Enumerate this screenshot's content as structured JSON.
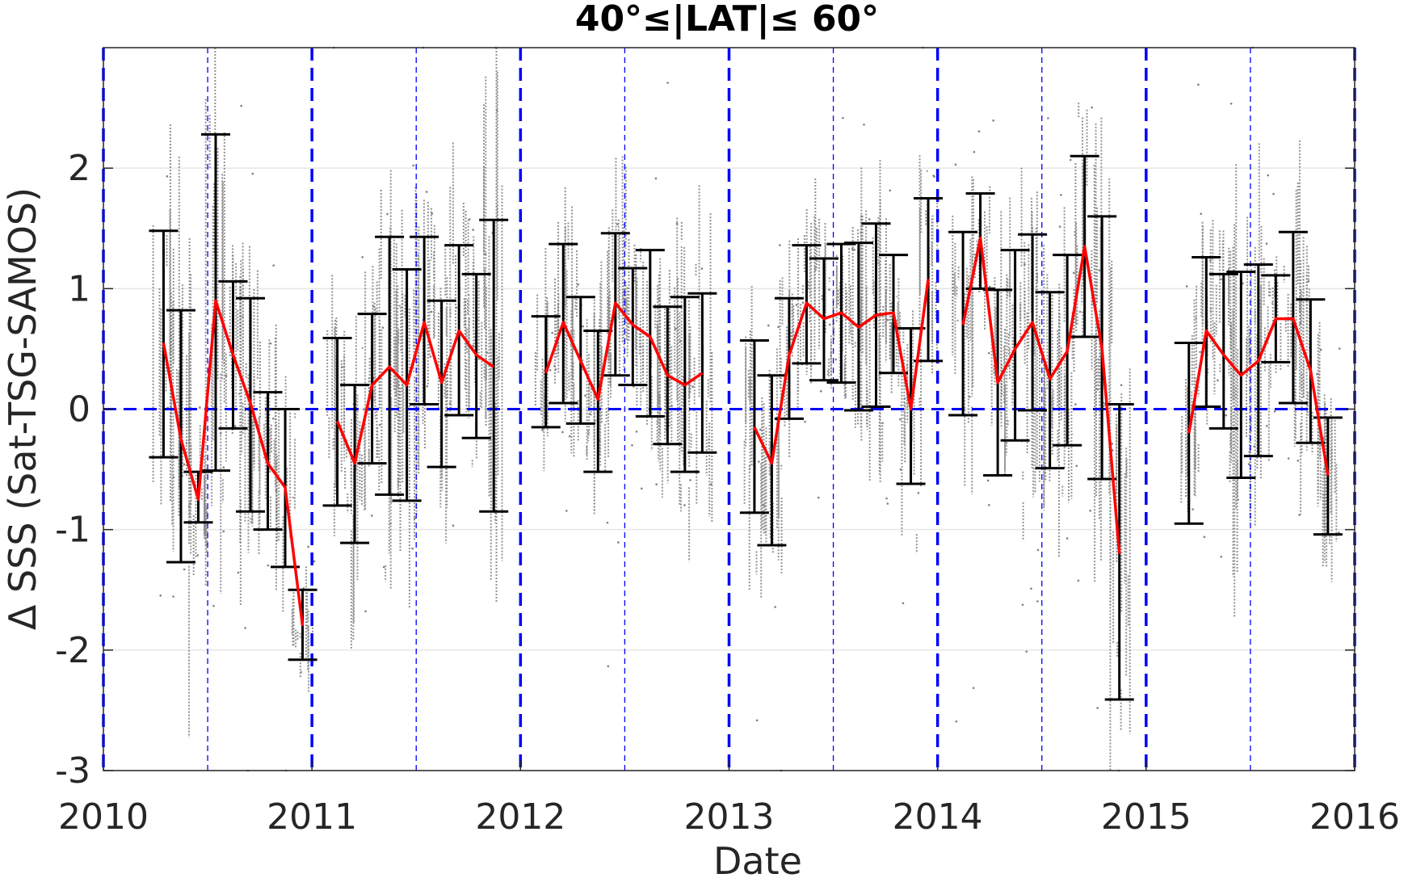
{
  "chart_data": {
    "type": "scatter",
    "title": "40°≤|LAT|≤ 60°",
    "xlabel": "Date",
    "ylabel": "Δ SSS (Sat-TSG-SAMOS)",
    "xlim": [
      "2010",
      "2016"
    ],
    "ylim": [
      -3,
      3
    ],
    "xticks": [
      "2010",
      "2011",
      "2012",
      "2013",
      "2014",
      "2015",
      "2016"
    ],
    "yticks": [
      "-3",
      "-2",
      "-1",
      "0",
      "1",
      "2"
    ],
    "grid": true,
    "colors": {
      "points": "#808080",
      "mean_line": "#ff0000",
      "error_bars": "#000000",
      "reference_lines": "#0000ff"
    },
    "series": [
      {
        "style": "red-line",
        "x": [
          "2010-04-15",
          "2010-05-15",
          "2010-06-15",
          "2010-07-15",
          "2010-08-15",
          "2010-09-15",
          "2010-10-15",
          "2010-11-15",
          "2010-12-15",
          "2011-02-15",
          "2011-03-15",
          "2011-04-15",
          "2011-05-15",
          "2011-06-15",
          "2011-07-15",
          "2011-08-15",
          "2011-09-15",
          "2011-10-15",
          "2011-11-15",
          "2012-02-15",
          "2012-03-15",
          "2012-04-15",
          "2012-05-15",
          "2012-06-15",
          "2012-07-15",
          "2012-08-15",
          "2012-09-15",
          "2012-10-15",
          "2012-11-15",
          "2013-02-15",
          "2013-03-15",
          "2013-04-15",
          "2013-05-15",
          "2013-06-15",
          "2013-07-15",
          "2013-08-15",
          "2013-09-15",
          "2013-10-15",
          "2013-11-15",
          "2013-12-15",
          "2014-02-15",
          "2014-03-15",
          "2014-04-15",
          "2014-05-15",
          "2014-06-15",
          "2014-07-15",
          "2014-08-15",
          "2014-09-15",
          "2014-10-15",
          "2014-11-15",
          "2015-03-15",
          "2015-04-15",
          "2015-05-15",
          "2015-06-15",
          "2015-07-15",
          "2015-08-15",
          "2015-09-15",
          "2015-10-15",
          "2015-11-15"
        ],
        "values": [
          0.55,
          -0.25,
          -0.75,
          0.9,
          0.45,
          0.05,
          -0.45,
          -0.65,
          -1.8,
          -0.1,
          -0.45,
          0.2,
          0.35,
          0.2,
          0.72,
          0.22,
          0.65,
          0.45,
          0.35,
          0.3,
          0.72,
          0.4,
          0.08,
          0.88,
          0.7,
          0.6,
          0.28,
          0.2,
          0.3,
          -0.15,
          -0.45,
          0.45,
          0.88,
          0.75,
          0.8,
          0.68,
          0.78,
          0.8,
          0.0,
          1.08,
          0.7,
          1.42,
          0.22,
          0.5,
          0.72,
          0.25,
          0.48,
          1.35,
          0.5,
          -1.2,
          -0.2,
          0.65,
          0.45,
          0.28,
          0.4,
          0.75,
          0.75,
          0.32,
          -0.55
        ]
      },
      {
        "style": "error-bars",
        "x": [
          "2010-04-15",
          "2010-05-15",
          "2010-06-15",
          "2010-07-15",
          "2010-08-15",
          "2010-09-15",
          "2010-10-15",
          "2010-11-15",
          "2010-12-15",
          "2011-02-15",
          "2011-03-15",
          "2011-04-15",
          "2011-05-15",
          "2011-06-15",
          "2011-07-15",
          "2011-08-15",
          "2011-09-15",
          "2011-10-15",
          "2011-11-15",
          "2012-02-15",
          "2012-03-15",
          "2012-04-15",
          "2012-05-15",
          "2012-06-15",
          "2012-07-15",
          "2012-08-15",
          "2012-09-15",
          "2012-10-15",
          "2012-11-15",
          "2013-02-15",
          "2013-03-15",
          "2013-04-15",
          "2013-05-15",
          "2013-06-15",
          "2013-07-15",
          "2013-08-15",
          "2013-09-15",
          "2013-10-15",
          "2013-11-15",
          "2013-12-15",
          "2014-02-15",
          "2014-03-15",
          "2014-04-15",
          "2014-05-15",
          "2014-06-15",
          "2014-07-15",
          "2014-08-15",
          "2014-09-15",
          "2014-10-15",
          "2014-11-15",
          "2015-03-15",
          "2015-04-15",
          "2015-05-15",
          "2015-06-15",
          "2015-07-15",
          "2015-08-15",
          "2015-09-15",
          "2015-10-15",
          "2015-11-15"
        ],
        "upper": [
          1.48,
          0.82,
          -0.52,
          2.28,
          1.06,
          0.92,
          0.14,
          0.0,
          -1.5,
          0.59,
          0.2,
          0.79,
          1.43,
          1.16,
          1.43,
          0.9,
          1.36,
          1.12,
          1.57,
          0.77,
          1.37,
          0.93,
          0.65,
          1.46,
          1.17,
          1.32,
          0.85,
          0.93,
          0.96,
          0.57,
          0.28,
          0.92,
          1.36,
          1.25,
          1.37,
          1.38,
          1.54,
          1.28,
          0.67,
          1.75,
          1.47,
          1.79,
          0.99,
          1.32,
          1.45,
          0.97,
          1.28,
          2.1,
          1.6,
          0.04,
          0.55,
          1.26,
          1.12,
          1.14,
          1.2,
          1.11,
          1.47,
          0.91,
          -0.07
        ],
        "lower": [
          -0.4,
          -1.27,
          -0.94,
          -0.51,
          -0.16,
          -0.85,
          -1.0,
          -1.31,
          -2.08,
          -0.8,
          -1.11,
          -0.45,
          -0.71,
          -0.76,
          0.04,
          -0.48,
          -0.05,
          -0.24,
          -0.85,
          -0.15,
          0.05,
          -0.12,
          -0.52,
          0.28,
          0.2,
          -0.06,
          -0.29,
          -0.52,
          -0.36,
          -0.86,
          -1.13,
          -0.08,
          0.38,
          0.24,
          0.22,
          -0.01,
          0.02,
          0.3,
          -0.62,
          0.4,
          -0.05,
          1.0,
          -0.55,
          -0.26,
          -0.01,
          -0.49,
          -0.3,
          0.6,
          -0.58,
          -2.41,
          -0.95,
          0.02,
          -0.16,
          -0.57,
          -0.39,
          0.39,
          0.05,
          -0.28,
          -1.04
        ]
      }
    ],
    "reference_lines": {
      "horizontal": [
        0
      ],
      "vertical_bold": [
        "2010",
        "2011",
        "2012",
        "2013",
        "2014",
        "2015",
        "2016"
      ],
      "vertical_thin": [
        "2010-07-01",
        "2011-07-01",
        "2012-07-01",
        "2013-07-01",
        "2014-07-01",
        "2015-07-01"
      ]
    }
  }
}
